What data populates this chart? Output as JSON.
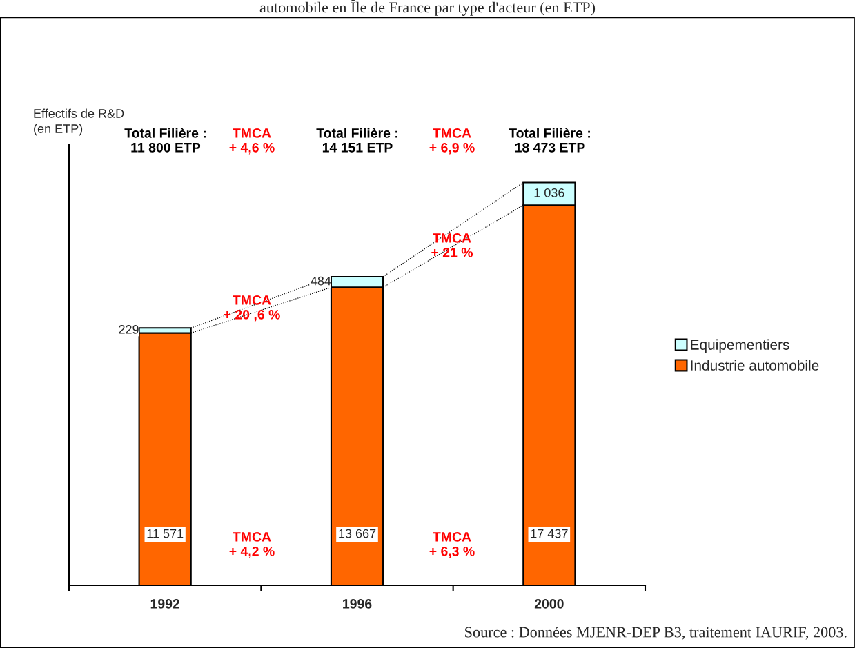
{
  "chart_data": {
    "type": "bar",
    "title": "automobile en Île de France par type d'acteur (en ETP)",
    "ylabel": "Effectifs de R&D\n(en ETP)",
    "categories": [
      "1992",
      "1996",
      "2000"
    ],
    "stacked": true,
    "series": [
      {
        "name": "Industrie automobile",
        "color": "#ff6600",
        "values": [
          11571,
          13667,
          17437
        ],
        "value_labels": [
          "11 571",
          "13 667",
          "17 437"
        ]
      },
      {
        "name": "Equipementiers",
        "color": "#ccffff",
        "values": [
          229,
          484,
          1036
        ],
        "value_labels": [
          "229",
          "484",
          "1 036"
        ]
      }
    ],
    "ylim": [
      0,
      20200
    ],
    "tick_labels": "x",
    "legend": "right",
    "grid": false,
    "annotations": [
      "Total Filière :\n11 800 ETP",
      "TMCA\n+ 4,6 %",
      "Total Filière :\n14 151 ETP",
      "TMCA\n+ 6,9 %",
      "Total Filière :\n18 473 ETP",
      "TMCA\n+ 20 ,6 %",
      "TMCA\n+ 21 %",
      "TMCA\n+ 4,2 %",
      "TMCA\n+ 6,3 %",
      "Source : Données MJENR-DEP B3, traitement IAURIF, 2003."
    ]
  }
}
